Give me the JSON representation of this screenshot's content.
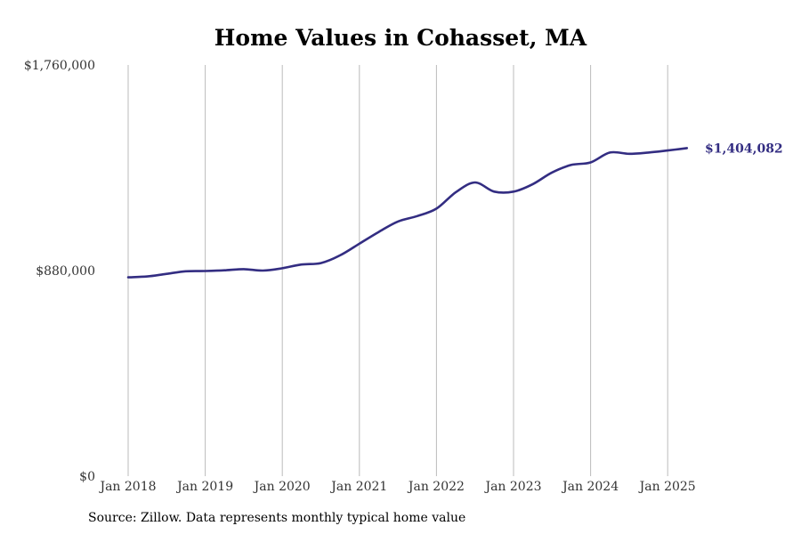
{
  "chart_data": {
    "type": "line",
    "title": "Home Values in Cohasset, MA",
    "xlabel": "",
    "ylabel": "",
    "ylim": [
      0,
      1760000
    ],
    "y_ticks": [
      0,
      880000,
      1760000
    ],
    "y_tick_labels": [
      "$0",
      "$880,000",
      "$1,760,000"
    ],
    "x_tick_labels": [
      "Jan 2018",
      "Jan 2019",
      "Jan 2020",
      "Jan 2021",
      "Jan 2022",
      "Jan 2023",
      "Jan 2024",
      "Jan 2025"
    ],
    "x_ticks": [
      "2018-01",
      "2019-01",
      "2020-01",
      "2021-01",
      "2022-01",
      "2023-01",
      "2024-01",
      "2025-01"
    ],
    "grid": "vertical",
    "series": [
      {
        "color": "#332d82",
        "points": [
          [
            "2018-01",
            851000
          ],
          [
            "2018-04",
            855000
          ],
          [
            "2018-07",
            866000
          ],
          [
            "2018-10",
            877000
          ],
          [
            "2019-01",
            878000
          ],
          [
            "2019-04",
            881000
          ],
          [
            "2019-07",
            886000
          ],
          [
            "2019-10",
            880000
          ],
          [
            "2020-01",
            890000
          ],
          [
            "2020-04",
            906000
          ],
          [
            "2020-07",
            912000
          ],
          [
            "2020-10",
            945000
          ],
          [
            "2021-01",
            995000
          ],
          [
            "2021-04",
            1045000
          ],
          [
            "2021-07",
            1090000
          ],
          [
            "2021-10",
            1113000
          ],
          [
            "2022-01",
            1145000
          ],
          [
            "2022-04",
            1215000
          ],
          [
            "2022-07",
            1257000
          ],
          [
            "2022-10",
            1218000
          ],
          [
            "2023-01",
            1218000
          ],
          [
            "2023-04",
            1250000
          ],
          [
            "2023-07",
            1300000
          ],
          [
            "2023-10",
            1332000
          ],
          [
            "2024-01",
            1343000
          ],
          [
            "2024-04",
            1385000
          ],
          [
            "2024-07",
            1380000
          ],
          [
            "2024-10",
            1385000
          ],
          [
            "2025-01",
            1394000
          ],
          [
            "2025-04",
            1404082
          ]
        ]
      }
    ],
    "end_label": "$1,404,082",
    "source": "Source: Zillow. Data represents monthly typical home value"
  }
}
